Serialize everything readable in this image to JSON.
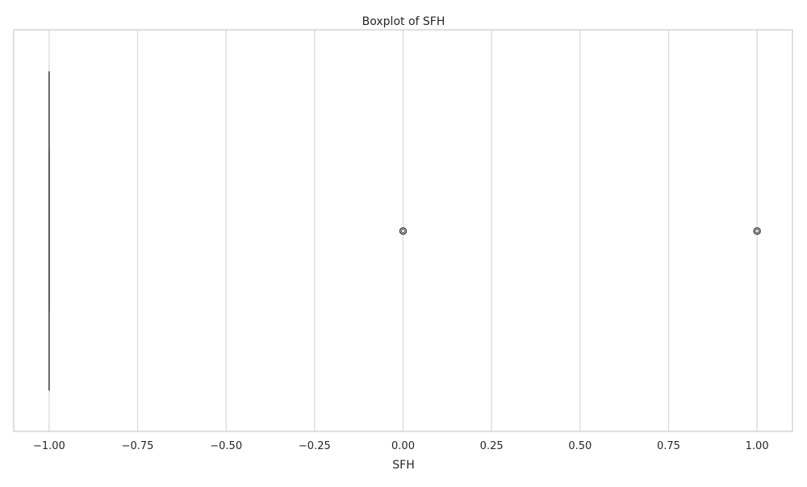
{
  "chart_data": {
    "type": "boxplot",
    "title": "Boxplot of SFH",
    "xlabel": "SFH",
    "ylabel": "",
    "orientation": "horizontal",
    "xlim": [
      -1.1,
      1.1
    ],
    "xticks": [
      -1.0,
      -0.75,
      -0.5,
      -0.25,
      0.0,
      0.25,
      0.5,
      0.75,
      1.0
    ],
    "xtick_labels": [
      "−1.00",
      "−0.75",
      "−0.50",
      "−0.25",
      "0.00",
      "0.25",
      "0.50",
      "0.75",
      "1.00"
    ],
    "grid": true,
    "box": {
      "q1": -1,
      "median": -1,
      "q3": -1,
      "whisker_low": -1,
      "whisker_high": -1
    },
    "outliers": [
      0,
      1
    ],
    "colors": {
      "grid": "#d9d9d9",
      "axes_edge": "#cccccc",
      "box_line": "#4d4d4d",
      "text": "#262626"
    }
  }
}
